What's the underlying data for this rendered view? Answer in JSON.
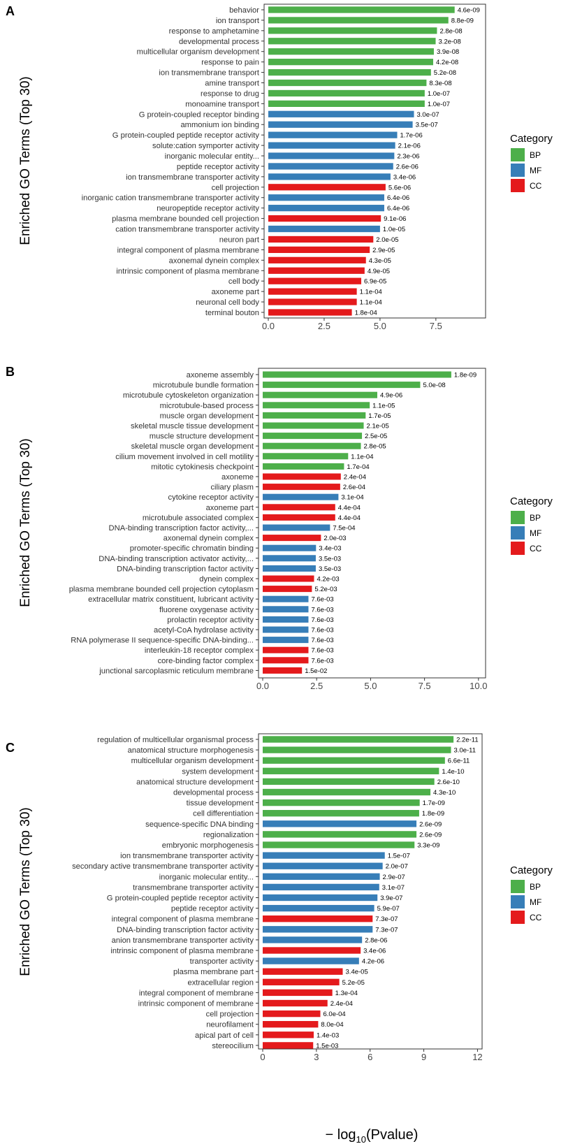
{
  "figure": {
    "x_axis_label_prefix": "− log",
    "x_axis_label_sub": "10",
    "x_axis_label_suffix": "(Pvalue)"
  },
  "chart_data": [
    {
      "type": "bar",
      "panel_label": "A",
      "ylabel": "Enriched GO Terms (Top 30)",
      "xlim": [
        0,
        9.6
      ],
      "xticks": [
        0.0,
        2.5,
        5.0,
        7.5
      ],
      "xtick_labels": [
        "0.0",
        "2.5",
        "5.0",
        "7.5"
      ],
      "legend": {
        "title": "Category",
        "position": "right",
        "entries": [
          {
            "label": "BP",
            "color": "#4daf4a"
          },
          {
            "label": "MF",
            "color": "#377eb8"
          },
          {
            "label": "CC",
            "color": "#e41a1c"
          }
        ]
      },
      "categories": [
        "behavior",
        "ion transport",
        "response to amphetamine",
        "developmental process",
        "multicellular organism development",
        "response to pain",
        "ion transmembrane transport",
        "amine transport",
        "response to drug",
        "monoamine transport",
        "G protein-coupled receptor binding",
        "ammonium ion binding",
        "G protein-coupled peptide receptor activity",
        "solute:cation symporter activity",
        "inorganic molecular entity...",
        "peptide receptor activity",
        "ion transmembrane transporter activity",
        "cell projection",
        "inorganic cation transmembrane transporter activity",
        "neuropeptide receptor activity",
        "plasma membrane bounded cell projection",
        "cation transmembrane transporter activity",
        "neuron part",
        "integral component of plasma membrane",
        "axonemal dynein complex",
        "intrinsic component of plasma membrane",
        "cell body",
        "axoneme part",
        "neuronal cell body",
        "terminal bouton"
      ],
      "values": [
        8.34,
        8.06,
        7.55,
        7.49,
        7.41,
        7.38,
        7.28,
        7.08,
        7.0,
        7.0,
        6.52,
        6.46,
        5.77,
        5.68,
        5.64,
        5.59,
        5.47,
        5.25,
        5.19,
        5.19,
        5.04,
        5.0,
        4.7,
        4.54,
        4.37,
        4.31,
        4.16,
        3.96,
        3.96,
        3.74
      ],
      "groups": [
        "BP",
        "BP",
        "BP",
        "BP",
        "BP",
        "BP",
        "BP",
        "BP",
        "BP",
        "BP",
        "MF",
        "MF",
        "MF",
        "MF",
        "MF",
        "MF",
        "MF",
        "CC",
        "MF",
        "MF",
        "CC",
        "MF",
        "CC",
        "CC",
        "CC",
        "CC",
        "CC",
        "CC",
        "CC",
        "CC"
      ],
      "pvalue_labels": [
        "4.6e-09",
        "8.8e-09",
        "2.8e-08",
        "3.2e-08",
        "3.9e-08",
        "4.2e-08",
        "5.2e-08",
        "8.3e-08",
        "1.0e-07",
        "1.0e-07",
        "3.0e-07",
        "3.5e-07",
        "1.7e-06",
        "2.1e-06",
        "2.3e-06",
        "2.6e-06",
        "3.4e-06",
        "5.6e-06",
        "6.4e-06",
        "6.4e-06",
        "9.1e-06",
        "1.0e-05",
        "2.0e-05",
        "2.9e-05",
        "4.3e-05",
        "4.9e-05",
        "6.9e-05",
        "1.1e-04",
        "1.1e-04",
        "1.8e-04"
      ]
    },
    {
      "type": "bar",
      "panel_label": "B",
      "ylabel": "Enriched GO Terms (Top 30)",
      "xlim": [
        0,
        10.2
      ],
      "xticks": [
        0.0,
        2.5,
        5.0,
        7.5,
        10.0
      ],
      "xtick_labels": [
        "0.0",
        "2.5",
        "5.0",
        "7.5",
        "10.0"
      ],
      "legend": {
        "title": "Category",
        "position": "right",
        "entries": [
          {
            "label": "BP",
            "color": "#4daf4a"
          },
          {
            "label": "MF",
            "color": "#377eb8"
          },
          {
            "label": "CC",
            "color": "#e41a1c"
          }
        ]
      },
      "categories": [
        "axoneme assembly",
        "microtubule bundle formation",
        "microtubule cytoskeleton organization",
        "microtubule-based process",
        "muscle organ development",
        "skeletal muscle tissue development",
        "muscle structure development",
        "skeletal muscle organ development",
        "cilium movement involved in cell motility",
        "mitotic cytokinesis checkpoint",
        "axoneme",
        "ciliary plasm",
        "cytokine receptor activity",
        "axoneme part",
        "microtubule associated complex",
        "DNA-binding transcription factor activity,...",
        "axonemal dynein complex",
        "promoter-specific chromatin binding",
        "DNA-binding transcription activator activity,...",
        "DNA-binding transcription factor activity",
        "dynein complex",
        "plasma membrane bounded cell projection cytoplasm",
        "extracellular matrix constituent, lubricant activity",
        "fluorene oxygenase activity",
        "prolactin receptor activity",
        "acetyl-CoA hydrolase activity",
        "RNA polymerase II sequence-specific DNA-binding...",
        "interleukin-18 receptor complex",
        "core-binding factor complex",
        "junctional sarcoplasmic reticulum membrane"
      ],
      "values": [
        8.74,
        7.3,
        5.31,
        4.96,
        4.77,
        4.68,
        4.6,
        4.55,
        3.96,
        3.77,
        3.62,
        3.59,
        3.51,
        3.36,
        3.36,
        3.12,
        2.7,
        2.47,
        2.46,
        2.46,
        2.38,
        2.28,
        2.12,
        2.12,
        2.12,
        2.12,
        2.12,
        2.12,
        2.12,
        1.82
      ],
      "groups": [
        "BP",
        "BP",
        "BP",
        "BP",
        "BP",
        "BP",
        "BP",
        "BP",
        "BP",
        "BP",
        "CC",
        "CC",
        "MF",
        "CC",
        "CC",
        "MF",
        "CC",
        "MF",
        "MF",
        "MF",
        "CC",
        "CC",
        "MF",
        "MF",
        "MF",
        "MF",
        "MF",
        "CC",
        "CC",
        "CC"
      ],
      "pvalue_labels": [
        "1.8e-09",
        "5.0e-08",
        "4.9e-06",
        "1.1e-05",
        "1.7e-05",
        "2.1e-05",
        "2.5e-05",
        "2.8e-05",
        "1.1e-04",
        "1.7e-04",
        "2.4e-04",
        "2.6e-04",
        "3.1e-04",
        "4.4e-04",
        "4.4e-04",
        "7.5e-04",
        "2.0e-03",
        "3.4e-03",
        "3.5e-03",
        "3.5e-03",
        "4.2e-03",
        "5.2e-03",
        "7.6e-03",
        "7.6e-03",
        "7.6e-03",
        "7.6e-03",
        "7.6e-03",
        "7.6e-03",
        "7.6e-03",
        "1.5e-02"
      ]
    },
    {
      "type": "bar",
      "panel_label": "C",
      "ylabel": "Enriched GO Terms (Top 30)",
      "xlim": [
        0,
        12.1
      ],
      "xticks": [
        0,
        3,
        6,
        9,
        12
      ],
      "xtick_labels": [
        "0",
        "3",
        "6",
        "9",
        "12"
      ],
      "xlabel": "− log10(Pvalue)",
      "legend": {
        "title": "Category",
        "position": "right",
        "entries": [
          {
            "label": "BP",
            "color": "#4daf4a"
          },
          {
            "label": "MF",
            "color": "#377eb8"
          },
          {
            "label": "CC",
            "color": "#e41a1c"
          }
        ]
      },
      "categories": [
        "regulation of multicellular organismal process",
        "anatomical structure morphogenesis",
        "multicellular organism development",
        "system development",
        "anatomical structure development",
        "developmental process",
        "tissue development",
        "cell differentiation",
        "sequence-specific DNA binding",
        "regionalization",
        "embryonic morphogenesis",
        "ion transmembrane transporter activity",
        "secondary active transmembrane transporter activity",
        "inorganic molecular entity...",
        "transmembrane transporter activity",
        "G protein-coupled peptide receptor activity",
        "peptide receptor activity",
        "integral component of plasma membrane",
        "DNA-binding transcription factor activity",
        "anion transmembrane transporter activity",
        "intrinsic component of plasma membrane",
        "transporter activity",
        "plasma membrane part",
        "extracellular region",
        "integral component of membrane",
        "intrinsic component of membrane",
        "cell projection",
        "neurofilament",
        "apical part of cell",
        "stereocilium"
      ],
      "values": [
        10.66,
        10.52,
        10.18,
        9.85,
        9.59,
        9.37,
        8.77,
        8.74,
        8.59,
        8.59,
        8.48,
        6.82,
        6.7,
        6.54,
        6.51,
        6.41,
        6.23,
        6.14,
        6.14,
        5.55,
        5.47,
        5.38,
        4.47,
        4.28,
        3.89,
        3.62,
        3.22,
        3.1,
        2.85,
        2.82
      ],
      "groups": [
        "BP",
        "BP",
        "BP",
        "BP",
        "BP",
        "BP",
        "BP",
        "BP",
        "MF",
        "BP",
        "BP",
        "MF",
        "MF",
        "MF",
        "MF",
        "MF",
        "MF",
        "CC",
        "MF",
        "MF",
        "CC",
        "MF",
        "CC",
        "CC",
        "CC",
        "CC",
        "CC",
        "CC",
        "CC",
        "CC"
      ],
      "pvalue_labels": [
        "2.2e-11",
        "3.0e-11",
        "6.6e-11",
        "1.4e-10",
        "2.6e-10",
        "4.3e-10",
        "1.7e-09",
        "1.8e-09",
        "2.6e-09",
        "2.6e-09",
        "3.3e-09",
        "1.5e-07",
        "2.0e-07",
        "2.9e-07",
        "3.1e-07",
        "3.9e-07",
        "5.9e-07",
        "7.3e-07",
        "7.3e-07",
        "2.8e-06",
        "3.4e-06",
        "4.2e-06",
        "3.4e-05",
        "5.2e-05",
        "1.3e-04",
        "2.4e-04",
        "6.0e-04",
        "8.0e-04",
        "1.4e-03",
        "1.5e-03"
      ]
    }
  ]
}
